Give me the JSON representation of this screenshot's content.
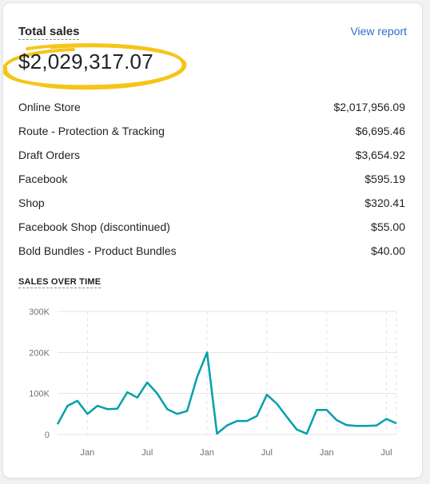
{
  "header": {
    "title": "Total sales",
    "view_report": "View report"
  },
  "total": {
    "value": "$2,029,317.07",
    "highlight_color": "#f5c518"
  },
  "channels": [
    {
      "name": "Online Store",
      "value": "$2,017,956.09"
    },
    {
      "name": "Route - Protection & Tracking",
      "value": "$6,695.46"
    },
    {
      "name": "Draft Orders",
      "value": "$3,654.92"
    },
    {
      "name": "Facebook",
      "value": "$595.19"
    },
    {
      "name": "Shop",
      "value": "$320.41"
    },
    {
      "name": "Facebook Shop (discontinued)",
      "value": "$55.00"
    },
    {
      "name": "Bold Bundles - Product Bundles",
      "value": "$40.00"
    }
  ],
  "sales_over_time": {
    "title": "SALES OVER TIME"
  },
  "chart_data": {
    "type": "line",
    "title": "",
    "xlabel": "",
    "ylabel": "",
    "ylim": [
      0,
      300000
    ],
    "yticks": [
      0,
      100000,
      200000,
      300000
    ],
    "ytick_labels": [
      "0",
      "100K",
      "200K",
      "300K"
    ],
    "xtick_labels": [
      "Jan",
      "Jul",
      "Jan",
      "Jul",
      "Jan",
      "Jul"
    ],
    "xtick_positions": [
      3,
      9,
      15,
      21,
      27,
      33
    ],
    "grid": true,
    "line_color": "#00a0ac",
    "series": [
      {
        "values": [
          25000,
          70000,
          82000,
          50000,
          70000,
          62000,
          63000,
          103000,
          90000,
          127000,
          100000,
          62000,
          50000,
          57000,
          140000,
          200000,
          2000,
          22000,
          33000,
          33000,
          45000,
          97000,
          75000,
          43000,
          12000,
          2000,
          60000,
          60000,
          35000,
          23000,
          21000,
          21000,
          22000,
          38000,
          27000
        ]
      }
    ]
  }
}
